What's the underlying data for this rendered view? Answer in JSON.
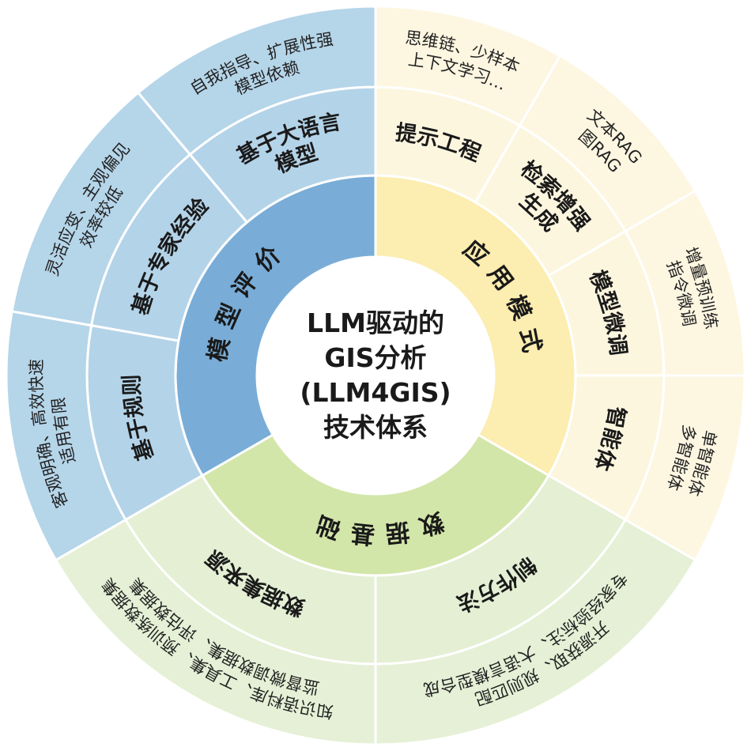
{
  "center": {
    "lines": [
      "LLM驱动的",
      "GIS分析",
      "(LLM4GIS)",
      "技术体系"
    ]
  },
  "categories": [
    {
      "label": "应用模式",
      "colors": {
        "inner": "#fcedb0",
        "middle": "#fdf6df",
        "outer": "#fdf6e1"
      },
      "children": [
        {
          "label": [
            "提示工程"
          ],
          "detail": [
            "思维链、少样本",
            "上下文学习…"
          ]
        },
        {
          "label": [
            "检索增强",
            "生成"
          ],
          "detail": [
            "文本RAG",
            "图RAG"
          ]
        },
        {
          "label": [
            "模型微调"
          ],
          "detail": [
            "增量预训练",
            "指令微调"
          ]
        },
        {
          "label": [
            "智能体"
          ],
          "detail": [
            "单智能体",
            "多智能体"
          ]
        }
      ]
    },
    {
      "label": "数据基础",
      "colors": {
        "inner": "#d3e6a9",
        "middle": "#e4efd4",
        "outer": "#e5f0d6"
      },
      "children": [
        {
          "label": [
            "制作方法"
          ],
          "detail": [
            "开源获取、规则匹配",
            "专家经验标注、大语言模型合成"
          ]
        },
        {
          "label": [
            "数据集来源"
          ],
          "detail": [
            "知识语料库、工具集、预训练数据集",
            "监督微调数据集、评估数据集"
          ]
        }
      ]
    },
    {
      "label": "模型评价",
      "colors": {
        "inner": "#79add7",
        "middle": "#b3d3e8",
        "outer": "#b5d5e9"
      },
      "children": [
        {
          "label": [
            "基于规则"
          ],
          "detail": [
            "客观明确、高效快速",
            "适用有限"
          ]
        },
        {
          "label": [
            "基于专家经验"
          ],
          "detail": [
            "灵活应变、主观偏见",
            "效率较低"
          ]
        },
        {
          "label": [
            "基于大语言",
            "模型"
          ],
          "detail": [
            "自我指导、扩展性强",
            "模型依赖"
          ]
        }
      ]
    }
  ]
}
